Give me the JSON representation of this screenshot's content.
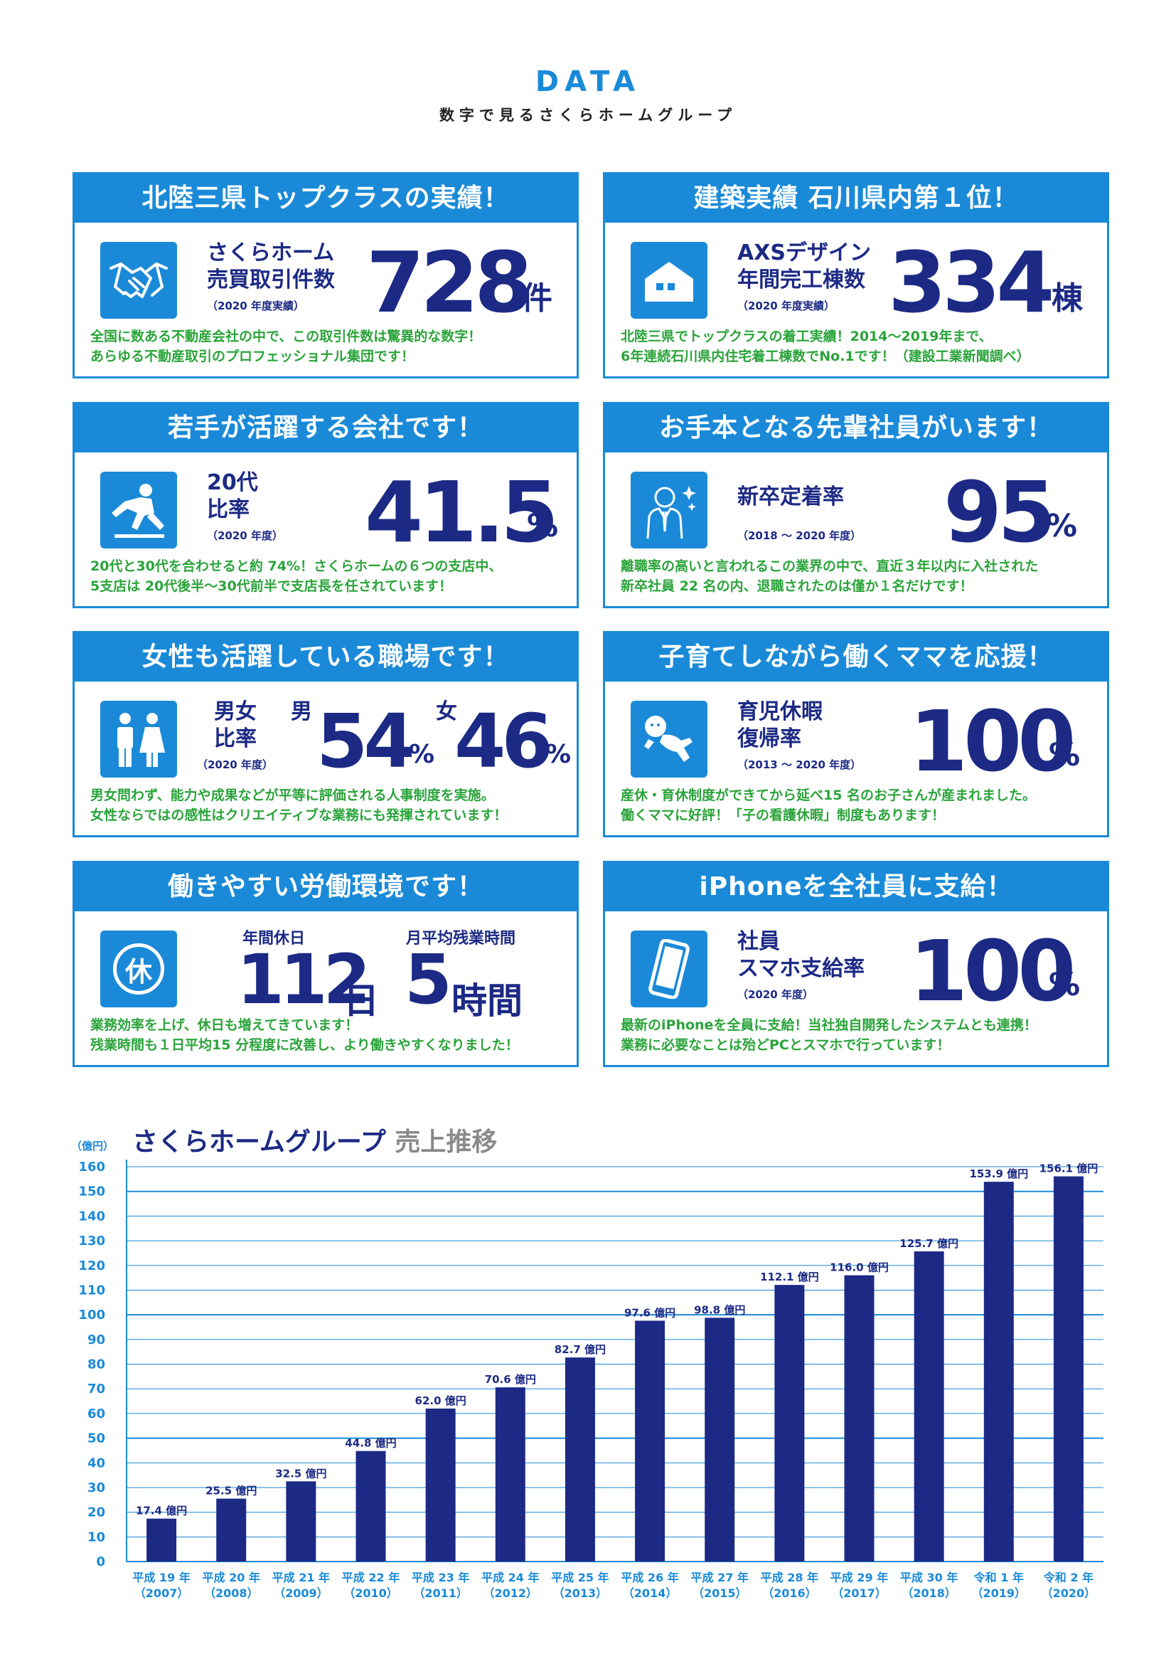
{
  "header": {
    "title": "DATA",
    "subtitle": "数字で見るさくらホームグループ"
  },
  "cards": [
    {
      "title": "北陸三県トップクラスの実績！",
      "icon": "handshake-icon",
      "label1": "さくらホーム",
      "label2": "売買取引件数",
      "note": "（2020 年度実績）",
      "value": "728",
      "unit": "件",
      "desc1": "全国に数ある不動産会社の中で、この取引件数は驚異的な数字！",
      "desc2": "あらゆる不動産取引のプロフェッショナル集団です！"
    },
    {
      "title": "建築実績 石川県内第１位！",
      "icon": "house-icon",
      "label1": "AXSデザイン",
      "label2": "年間完工棟数",
      "note": "（2020 年度実績）",
      "value": "334",
      "unit": "棟",
      "desc1": "北陸三県でトップクラスの着工実績！2014～2019年まで、",
      "desc2": "6年連続石川県内住宅着工棟数でNo.1です！（建設工業新聞調べ）"
    },
    {
      "title": "若手が活躍する会社です！",
      "icon": "pitcher-icon",
      "label1": "20代",
      "label2": "比率",
      "note": "（2020 年度）",
      "value": "41.5",
      "unit": "%",
      "desc1": "20代と30代を合わせると約 74%！さくらホームの６つの支店中、",
      "desc2": "5支店は 20代後半～30代前半で支店長を任されています！"
    },
    {
      "title": "お手本となる先輩社員がいます！",
      "icon": "businessman-icon",
      "label1": "新卒定着率",
      "label2": "",
      "note": "（2018 ～ 2020 年度）",
      "value": "95",
      "unit": "%",
      "desc1": "離職率の高いと言われるこの業界の中で、直近３年以内に入社された",
      "desc2": "新卒社員 22 名の内、退職されたのは僅か１名だけです！"
    },
    {
      "title": "女性も活躍している職場です！",
      "icon": "man-woman-icon",
      "label1": "男女",
      "label2": "比率",
      "note": "（2020 年度）",
      "male_label": "男",
      "male_value": "54",
      "female_label": "女",
      "female_value": "46",
      "unit": "%",
      "desc1": "男女問わず、能力や成果などが平等に評価される人事制度を実施。",
      "desc2": "女性ならではの感性はクリエイティブな業務にも発揮されています！"
    },
    {
      "title": "子育てしながら働くママを応援！",
      "icon": "baby-icon",
      "label1": "育児休暇",
      "label2": "復帰率",
      "note": "（2013 ～ 2020 年度）",
      "value": "100",
      "unit": "%",
      "desc1": "産休・育休制度ができてから延べ15 名のお子さんが産まれました。",
      "desc2": "働くママに好評！「子の看護休暇」制度もあります！"
    },
    {
      "title": "働きやすい労働環境です！",
      "icon": "holiday-icon",
      "icon_text": "休",
      "holiday_label": "年間休日",
      "holiday_value": "112",
      "holiday_unit": "日",
      "overtime_label": "月平均残業時間",
      "overtime_value": "5",
      "overtime_unit": "時間",
      "desc1": "業務効率を上げ、休日も増えてきています！",
      "desc2": "残業時間も１日平均15 分程度に改善し、より働きやすくなりました！"
    },
    {
      "title": "iPhoneを全社員に支給！",
      "icon": "smartphone-icon",
      "label1": "社員",
      "label2": "スマホ支給率",
      "note": "（2020 年度）",
      "value": "100",
      "unit": "%",
      "desc1": "最新のiPhoneを全員に支給！当社独自開発したシステムとも連携！",
      "desc2": "業務に必要なことは殆どPCとスマホで行っています！"
    }
  ],
  "chart_title_main": "さくらホームグループ",
  "chart_title_sub": "売上推移",
  "chart_data": {
    "type": "bar",
    "title": "さくらホームグループ 売上推移",
    "ylabel": "（億円）",
    "xlabel": "",
    "ylim": [
      0,
      160
    ],
    "yticks": [
      0,
      10,
      20,
      30,
      40,
      50,
      60,
      70,
      80,
      90,
      100,
      110,
      120,
      130,
      140,
      150,
      160
    ],
    "grid": true,
    "categories": [
      "平成 19 年",
      "平成 20 年",
      "平成 21 年",
      "平成 22 年",
      "平成 23 年",
      "平成 24 年",
      "平成 25 年",
      "平成 26 年",
      "平成 27 年",
      "平成 28 年",
      "平成 29 年",
      "平成 30 年",
      "令和 1 年",
      "令和 2 年"
    ],
    "categories_sub": [
      "（2007）",
      "（2008）",
      "（2009）",
      "（2010）",
      "（2011）",
      "（2012）",
      "（2013）",
      "（2014）",
      "（2015）",
      "（2016）",
      "（2017）",
      "（2018）",
      "（2019）",
      "（2020）"
    ],
    "values": [
      17.4,
      25.5,
      32.5,
      44.8,
      62.0,
      70.6,
      82.7,
      97.6,
      98.8,
      112.1,
      116.0,
      125.7,
      153.9,
      156.1
    ],
    "value_labels": [
      "17.4 億円",
      "25.5 億円",
      "32.5 億円",
      "44.8 億円",
      "62.0 億円",
      "70.6 億円",
      "82.7 億円",
      "97.6 億円",
      "98.8 億円",
      "112.1 億円",
      "116.0 億円",
      "125.7 億円",
      "153.9 億円",
      "156.1 億円"
    ],
    "bar_color": "#1c2a85",
    "grid_color": "#1a8ad8"
  }
}
